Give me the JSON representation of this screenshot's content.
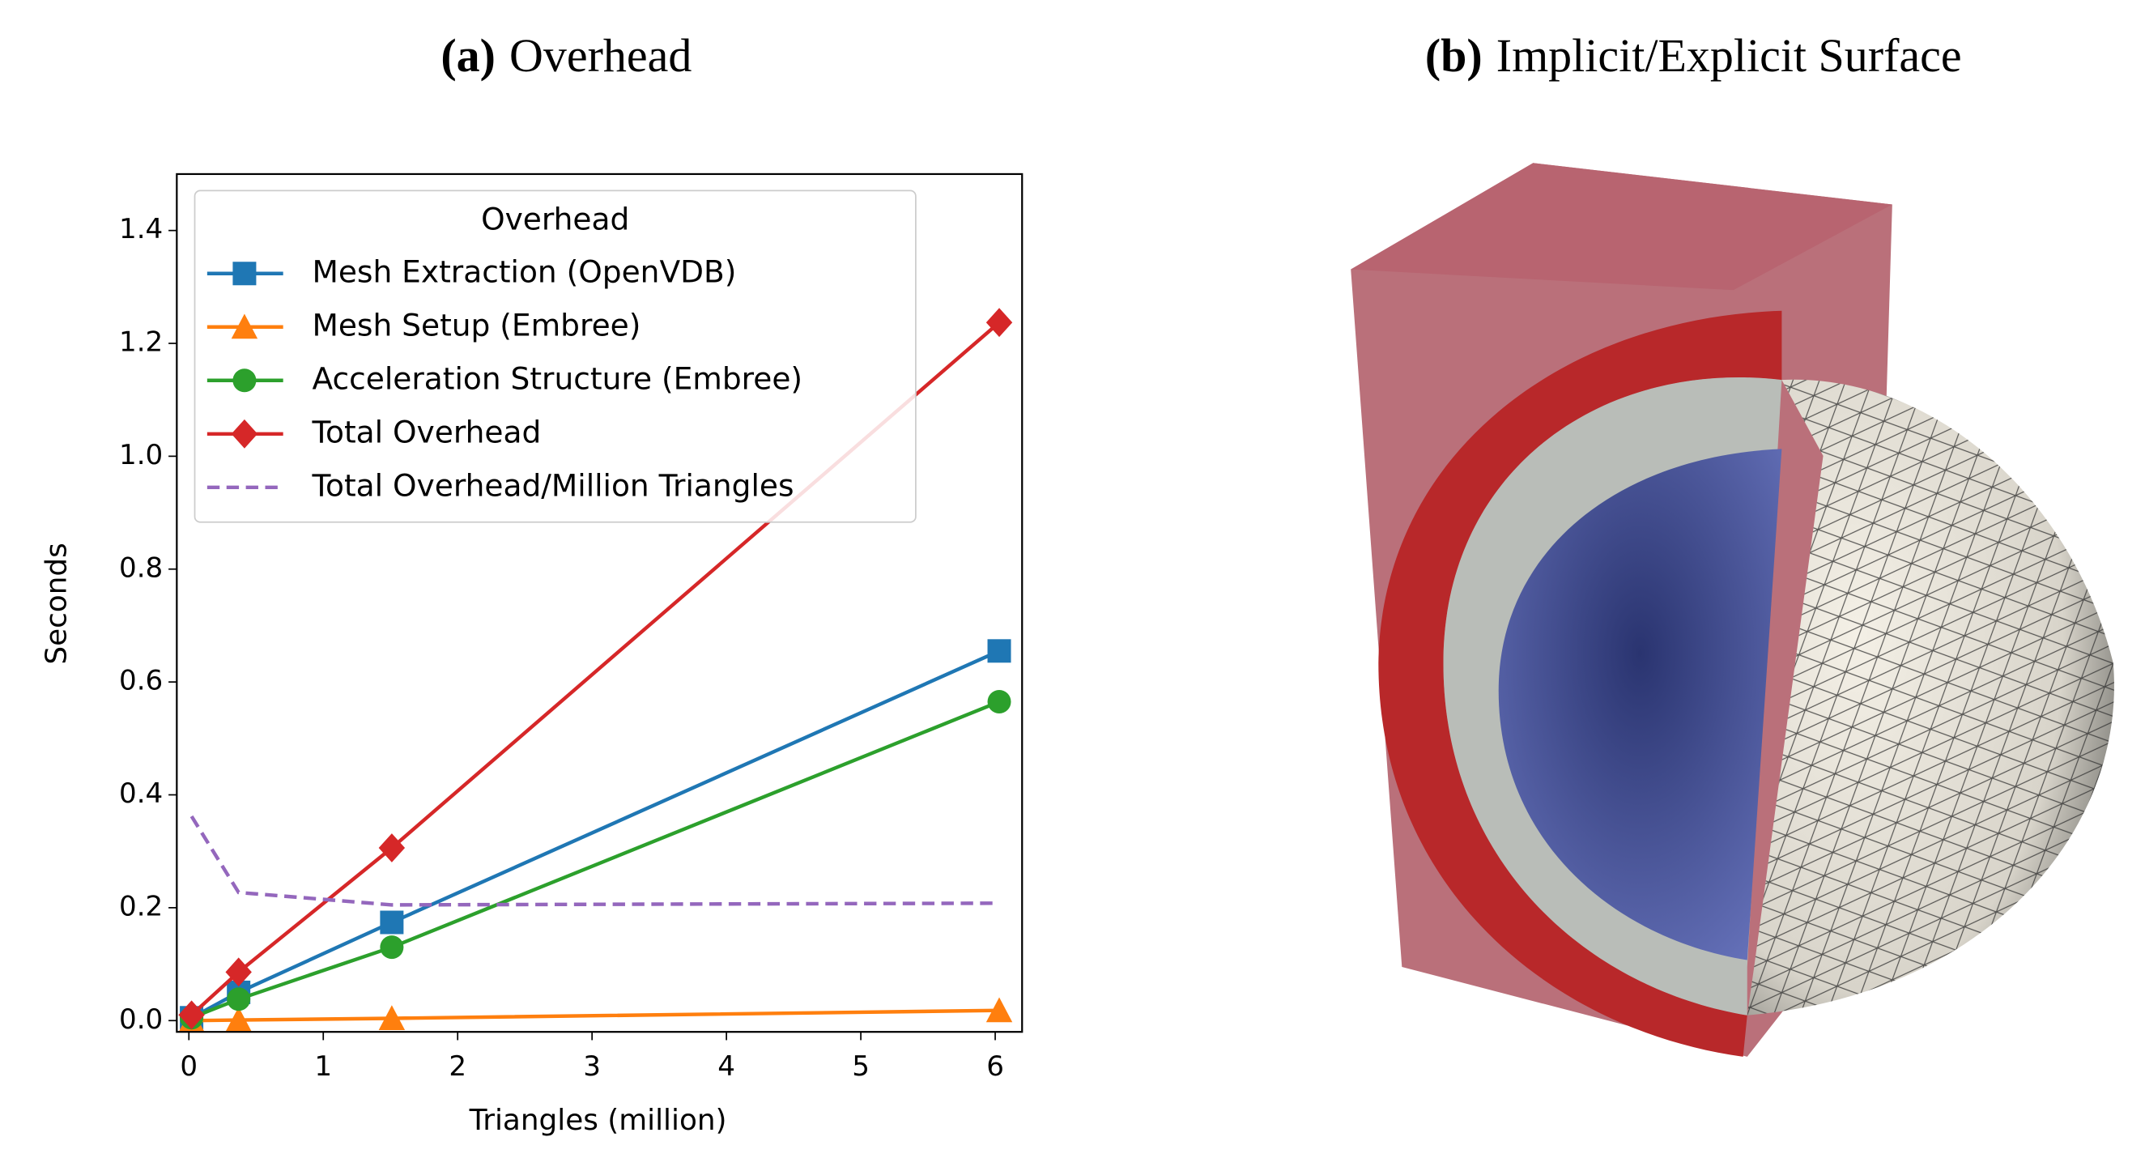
{
  "chart_data": {
    "type": "line",
    "panel_label": "(a)",
    "title": "Overhead",
    "x_label": "Triangles (million)",
    "y_label": "Seconds",
    "x": [
      0.02,
      0.37,
      1.51,
      6.03
    ],
    "series": [
      {
        "name": "Mesh Extraction (OpenVDB)",
        "color": "#1f77b4",
        "marker": "square",
        "linestyle": "solid",
        "values": [
          0.005,
          0.05,
          0.174,
          0.655
        ]
      },
      {
        "name": "Mesh Setup (Embree)",
        "color": "#ff7f0e",
        "marker": "triangle",
        "linestyle": "solid",
        "values": [
          0.0,
          0.001,
          0.004,
          0.018
        ]
      },
      {
        "name": "Acceleration Structure (Embree)",
        "color": "#2ca02c",
        "marker": "circle",
        "linestyle": "solid",
        "values": [
          0.005,
          0.038,
          0.13,
          0.565
        ]
      },
      {
        "name": "Total Overhead",
        "color": "#d62728",
        "marker": "diamond",
        "linestyle": "solid",
        "values": [
          0.01,
          0.086,
          0.306,
          1.237
        ]
      },
      {
        "name": "Total Overhead/Million Triangles",
        "color": "#9467bd",
        "marker": "none",
        "linestyle": "dashed",
        "values": [
          0.362,
          0.227,
          0.205,
          0.208
        ]
      }
    ],
    "xlim": [
      -0.09,
      6.2
    ],
    "ylim": [
      -0.02,
      1.5
    ],
    "xticks": [
      0,
      1,
      2,
      3,
      4,
      5,
      6
    ],
    "yticks": [
      {
        "value": 0,
        "label": "0.0"
      },
      0.2,
      0.4,
      0.6,
      0.8,
      {
        "value": 1,
        "label": "1.0"
      },
      1.2,
      1.4
    ],
    "legend_title": "Overhead",
    "legend_position": "upper left",
    "grid": false
  },
  "image_panel": {
    "panel_label": "(b)",
    "title": "Implicit/Explicit Surface"
  }
}
